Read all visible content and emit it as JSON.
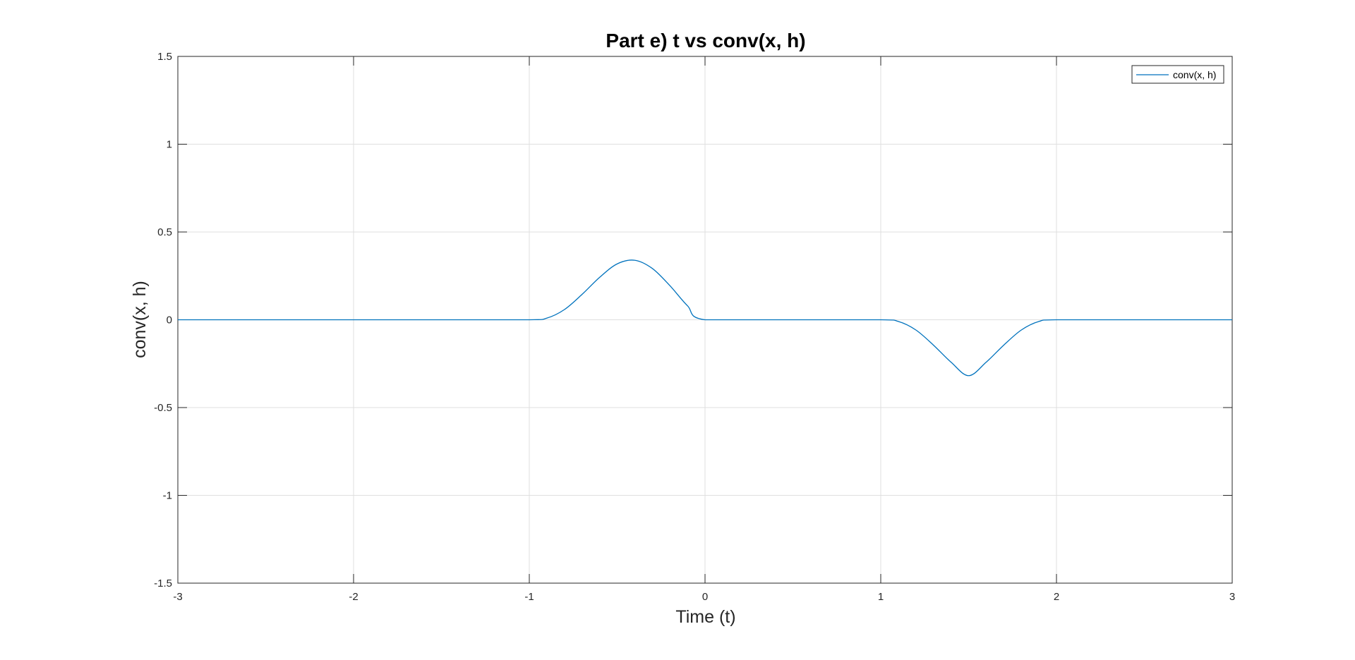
{
  "chart_data": {
    "type": "line",
    "title": "Part e) t vs conv(x, h)",
    "xlabel": "Time (t)",
    "ylabel": "conv(x, h)",
    "xlim": [
      -3,
      3
    ],
    "ylim": [
      -1.5,
      1.5
    ],
    "xticks": [
      -3,
      -2,
      -1,
      0,
      1,
      2,
      3
    ],
    "xtick_labels": [
      "-3",
      "-2",
      "-1",
      "0",
      "1",
      "2",
      "3"
    ],
    "yticks": [
      -1.5,
      -1,
      -0.5,
      0,
      0.5,
      1,
      1.5
    ],
    "ytick_labels": [
      "-1.5",
      "-1",
      "-0.5",
      "0",
      "0.5",
      "1",
      "1.5"
    ],
    "grid": true,
    "legend_position": "top-right",
    "series": [
      {
        "name": "conv(x, h)",
        "color": "#0072BD",
        "x": [
          -3,
          -2.5,
          -2,
          -1.5,
          -1,
          -0.9,
          -0.8,
          -0.7,
          -0.6,
          -0.5,
          -0.4,
          -0.3,
          -0.2,
          -0.1,
          0,
          0.5,
          1,
          1.1,
          1.2,
          1.3,
          1.4,
          1.5,
          1.6,
          1.7,
          1.8,
          1.9,
          2,
          2.5,
          3
        ],
        "y": [
          0,
          0,
          0,
          0,
          0,
          0.0097,
          0.0583,
          0.1444,
          0.2415,
          0.3183,
          0.339,
          0.2924,
          0.1944,
          0.0801,
          0,
          0,
          0,
          -0.0097,
          -0.0583,
          -0.1444,
          -0.2415,
          -0.3183,
          -0.2415,
          -0.1444,
          -0.0583,
          -0.0097,
          0,
          0,
          0
        ]
      }
    ]
  },
  "colors": {
    "axis": "#262626",
    "grid": "#dfdfdf",
    "line": "#0072BD"
  }
}
